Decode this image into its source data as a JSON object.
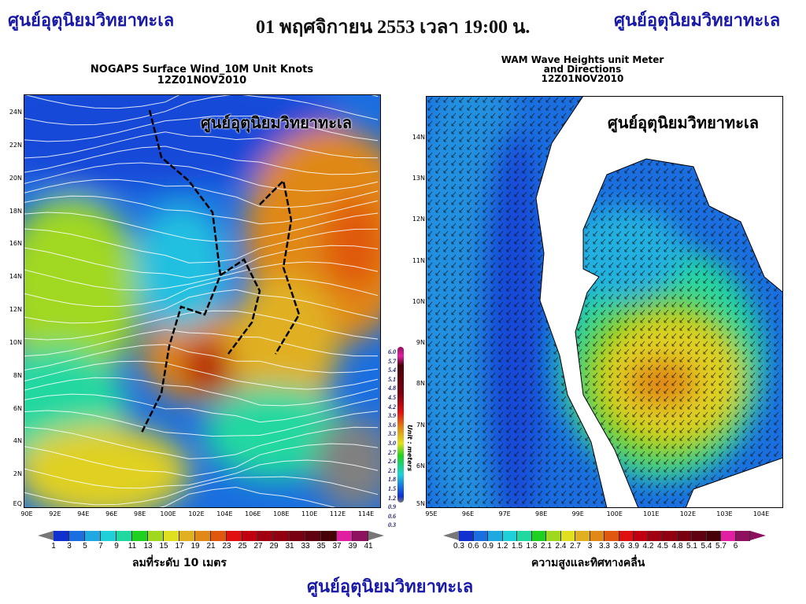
{
  "header": {
    "brand_left": "ศูนย์อุตุนิยมวิทยาทะเล",
    "datetime": "01 พฤศจิกายน 2553 เวลา 19:00 น.",
    "brand_right": "ศูนย์อุตุนิยมวิทยาทะเล"
  },
  "wind_map": {
    "title_line1": "NOGAPS Surface Wind_10M Unit Knots",
    "title_line2": "12Z01NOV2010",
    "watermark": "ศูนย์อุตุนิยมวิทยาทะเล",
    "lat_ticks": [
      "24N",
      "22N",
      "20N",
      "18N",
      "16N",
      "14N",
      "12N",
      "10N",
      "8N",
      "6N",
      "4N",
      "2N",
      "EQ"
    ],
    "lon_ticks": [
      "90E",
      "92E",
      "94E",
      "96E",
      "98E",
      "100E",
      "102E",
      "104E",
      "106E",
      "108E",
      "110E",
      "112E",
      "114E"
    ],
    "colorbar": {
      "labels": [
        "1",
        "3",
        "5",
        "7",
        "9",
        "11",
        "13",
        "15",
        "17",
        "19",
        "21",
        "23",
        "25",
        "27",
        "29",
        "31",
        "33",
        "35",
        "37",
        "39",
        "41"
      ],
      "colors": [
        "#1030d0",
        "#1a6ee0",
        "#20a8e0",
        "#20d0d8",
        "#20d8a0",
        "#20d020",
        "#a0d820",
        "#e0e020",
        "#e0b020",
        "#e08818",
        "#e05810",
        "#e01010",
        "#c00010",
        "#a00010",
        "#900010",
        "#780010",
        "#600010",
        "#480008",
        "#e020a0",
        "#901060"
      ],
      "caption": "ลมที่ระดับ 10 เมตร"
    }
  },
  "wave_map": {
    "title_line1": "WAM Wave Heights unit Meter",
    "title_line2": "and Directions",
    "title_line3": "12Z01NOV2010",
    "watermark": "ศูนย์อุตุนิยมวิทยาทะเล",
    "lat_ticks": [
      "14N",
      "13N",
      "12N",
      "11N",
      "10N",
      "9N",
      "8N",
      "7N",
      "6N",
      "5N"
    ],
    "lon_ticks": [
      "95E",
      "96E",
      "97E",
      "98E",
      "99E",
      "100E",
      "101E",
      "102E",
      "103E",
      "104E"
    ],
    "colorbar": {
      "labels": [
        "0.3",
        "0.6",
        "0.9",
        "1.2",
        "1.5",
        "1.8",
        "2.1",
        "2.4",
        "2.7",
        "3",
        "3.3",
        "3.6",
        "3.9",
        "4.2",
        "4.5",
        "4.8",
        "5.1",
        "5.4",
        "5.7",
        "6"
      ],
      "colors": [
        "#1030d0",
        "#1a6ee0",
        "#20a8e0",
        "#20d0d8",
        "#20d8a0",
        "#20d020",
        "#a0d820",
        "#e0e020",
        "#e0b020",
        "#e08818",
        "#e05810",
        "#e01010",
        "#c00010",
        "#a00010",
        "#900010",
        "#780010",
        "#600010",
        "#480008",
        "#e020a0",
        "#901060"
      ],
      "caption": "ความสูงและทิศทางคลื่น"
    },
    "vertical_colorbar": {
      "labels": [
        "6.0",
        "5.7",
        "5.4",
        "5.1",
        "4.8",
        "4.5",
        "4.2",
        "3.9",
        "3.6",
        "3.3",
        "3.0",
        "2.7",
        "2.4",
        "2.1",
        "1.8",
        "1.5",
        "1.2",
        "0.9",
        "0.6",
        "0.3"
      ],
      "unit": "Unit : meters"
    }
  },
  "footer": {
    "brand": "ศูนย์อุตุนิยมวิทยาทะเล"
  }
}
